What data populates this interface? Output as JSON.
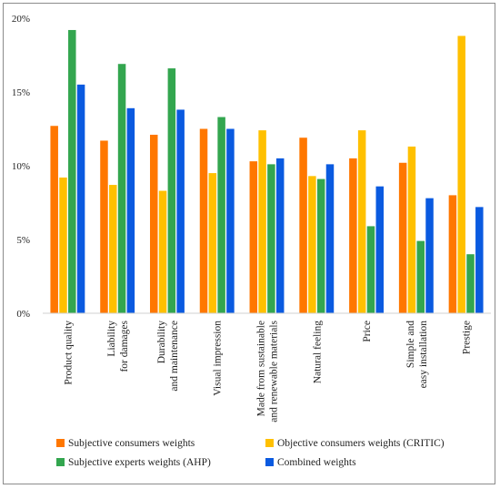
{
  "chart_data": {
    "type": "bar",
    "categories": [
      [
        "Product quality"
      ],
      [
        "Liability",
        "for damages"
      ],
      [
        "Durability",
        "and maintenance"
      ],
      [
        "Visual impression"
      ],
      [
        "Made from sustainable",
        "and renewable materials"
      ],
      [
        "Natural feeling"
      ],
      [
        "Price"
      ],
      [
        "Simple and",
        "easy installation"
      ],
      [
        "Prestige"
      ]
    ],
    "series": [
      {
        "name": "Subjective consumers weights",
        "color": "#ff7700",
        "values": [
          12.7,
          11.7,
          12.1,
          12.5,
          10.3,
          11.9,
          10.5,
          10.2,
          8.0
        ]
      },
      {
        "name": "Objective consumers weights (CRITIC)",
        "color": "#ffc000",
        "values": [
          9.2,
          8.7,
          8.3,
          9.5,
          12.4,
          9.3,
          12.4,
          11.3,
          18.8
        ]
      },
      {
        "name": "Subjective experts weights (AHP)",
        "color": "#33a64f",
        "values": [
          19.2,
          16.9,
          16.6,
          13.3,
          10.1,
          9.1,
          5.9,
          4.9,
          4.0
        ]
      },
      {
        "name": "Combined weights",
        "color": "#0a5ae0",
        "values": [
          15.5,
          13.9,
          13.8,
          12.5,
          10.5,
          10.1,
          8.6,
          7.8,
          7.2
        ]
      }
    ],
    "yticks": [
      "0%",
      "5%",
      "10%",
      "15%",
      "20%"
    ],
    "ylim": [
      0,
      20
    ],
    "xlabel": "",
    "ylabel": "",
    "title": "",
    "legend_position": "bottom"
  }
}
